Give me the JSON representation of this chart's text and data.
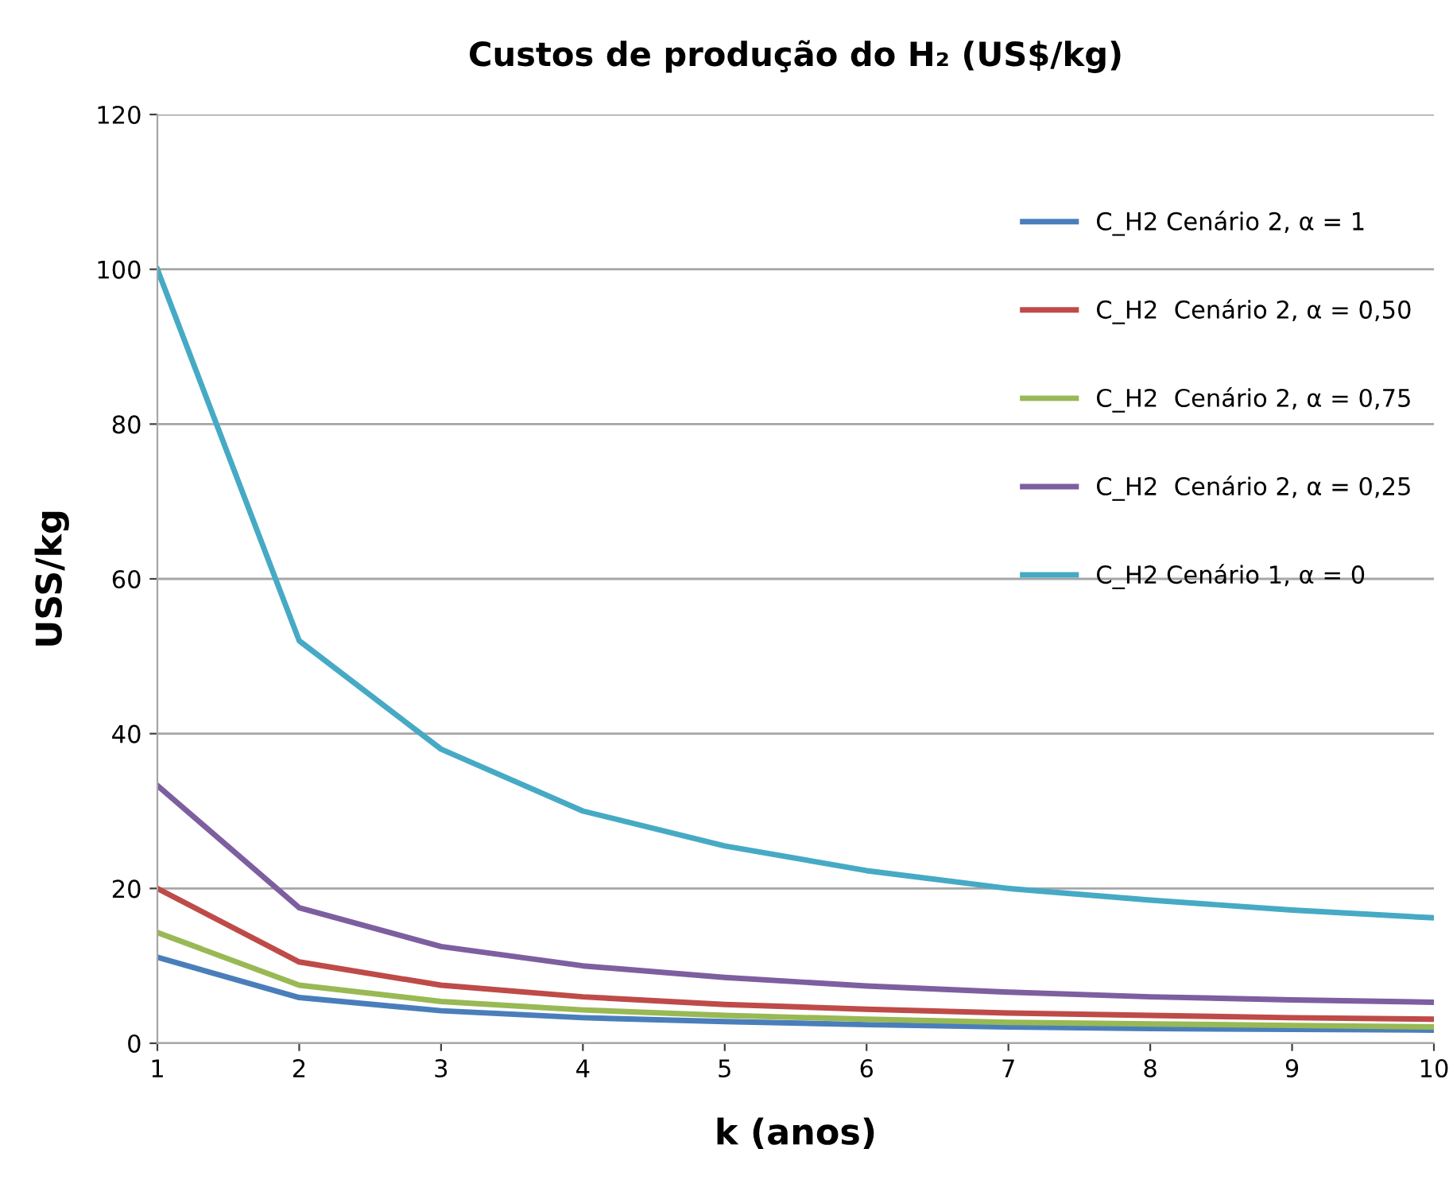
{
  "chart_data": {
    "type": "line",
    "title": "Custos de produção do H₂ (US$/kg)",
    "xlabel": "k (anos)",
    "ylabel": "USS/kg",
    "x": [
      1,
      2,
      3,
      4,
      5,
      6,
      7,
      8,
      9,
      10
    ],
    "series": [
      {
        "name": "C_H2 Cenário 2, α = 1",
        "color": "#4a7ebb",
        "values": [
          11.1,
          5.9,
          4.2,
          3.3,
          2.8,
          2.4,
          2.1,
          1.9,
          1.8,
          1.7
        ]
      },
      {
        "name": "C_H2  Cenário 2, α = 0,50",
        "color": "#be4b48",
        "values": [
          20,
          10.5,
          7.5,
          6,
          5,
          4.4,
          3.9,
          3.6,
          3.3,
          3.1
        ]
      },
      {
        "name": "C_H2  Cenário 2, α = 0,75",
        "color": "#98b954",
        "values": [
          14.3,
          7.5,
          5.4,
          4.3,
          3.6,
          3.1,
          2.7,
          2.5,
          2.3,
          2.1
        ]
      },
      {
        "name": "C_H2  Cenário 2, α = 0,25",
        "color": "#7d5fa0",
        "values": [
          33.3,
          17.5,
          12.5,
          10,
          8.5,
          7.4,
          6.6,
          6,
          5.6,
          5.3
        ]
      },
      {
        "name": "C_H2 Cenário 1, α = 0",
        "color": "#46aac5",
        "values": [
          100,
          52,
          38,
          30,
          25.5,
          22.3,
          20,
          18.5,
          17.2,
          16.2
        ]
      }
    ],
    "xlim": [
      1,
      10
    ],
    "xticks": [
      1,
      2,
      3,
      4,
      5,
      6,
      7,
      8,
      9,
      10
    ],
    "ylim": [
      0,
      120
    ],
    "yticks": [
      0,
      20,
      40,
      60,
      80,
      100,
      120
    ],
    "grid": "y",
    "legend": "top right",
    "marker": "none",
    "line_style": "solid"
  }
}
